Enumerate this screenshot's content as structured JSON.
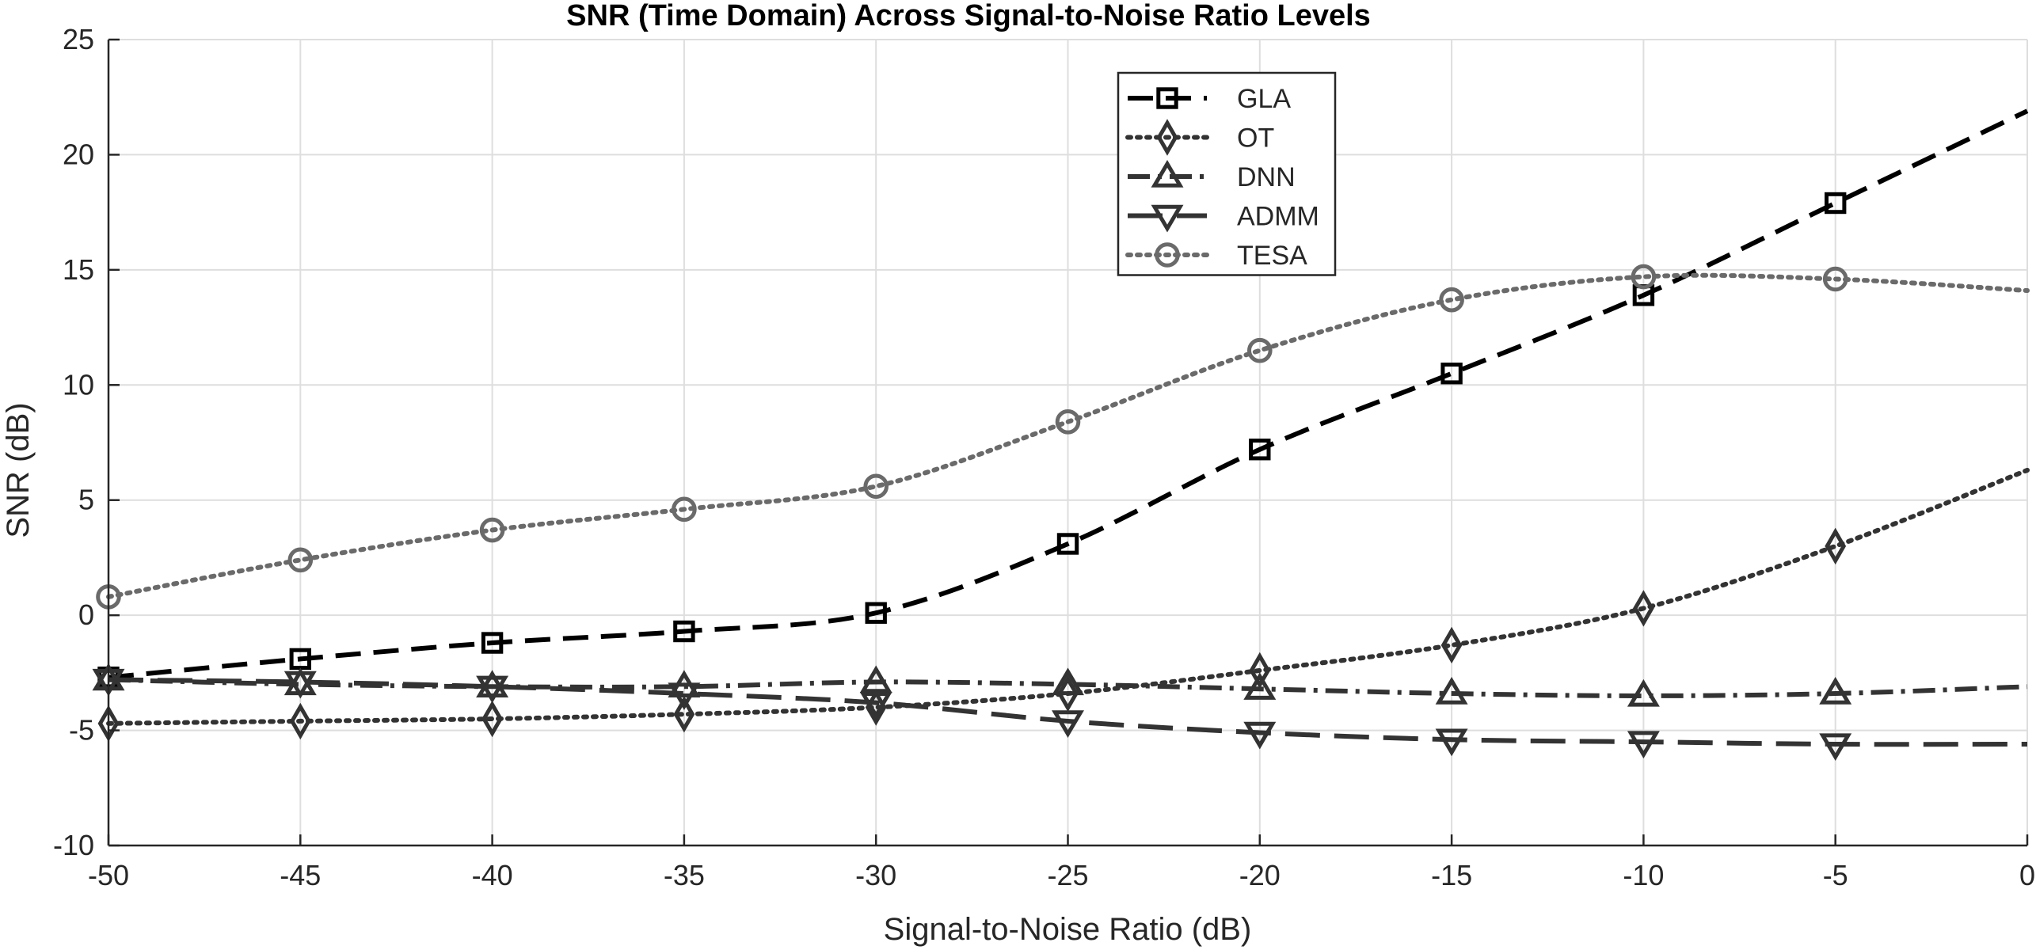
{
  "chart_data": {
    "type": "line",
    "title": "SNR (Time Domain) Across Signal-to-Noise Ratio Levels",
    "xlabel": "Signal-to-Noise Ratio (dB)",
    "ylabel": "SNR (dB)",
    "xlim": [
      -50,
      0
    ],
    "ylim": [
      -10,
      25
    ],
    "xticks": [
      -50,
      -45,
      -40,
      -35,
      -30,
      -25,
      -20,
      -15,
      -10,
      -5,
      0
    ],
    "yticks": [
      -10,
      -5,
      0,
      5,
      10,
      15,
      20,
      25
    ],
    "grid": true,
    "legend_position": "top-center",
    "series": [
      {
        "name": "GLA",
        "color": "#000000",
        "dash": "dashed",
        "marker": "square",
        "x": [
          -50,
          -45,
          -40,
          -35,
          -30,
          -25,
          -20,
          -15,
          -10,
          -5
        ],
        "y": [
          -2.7,
          -1.9,
          -1.2,
          -0.7,
          0.1,
          3.1,
          7.2,
          10.5,
          13.9,
          17.9
        ],
        "curve_x": [
          -50,
          -45,
          -40,
          -35,
          -30,
          -25,
          -20,
          -15,
          -10,
          -5,
          0
        ],
        "curve_y": [
          -2.7,
          -1.9,
          -1.2,
          -0.7,
          0.1,
          3.1,
          7.2,
          10.5,
          13.9,
          17.9,
          21.9
        ]
      },
      {
        "name": "OT",
        "color": "#333333",
        "dash": "dotted",
        "marker": "diamond",
        "x": [
          -50,
          -45,
          -40,
          -35,
          -30,
          -25,
          -20,
          -15,
          -10,
          -5
        ],
        "y": [
          -4.7,
          -4.6,
          -4.5,
          -4.3,
          -4.0,
          -3.4,
          -2.4,
          -1.3,
          0.3,
          3.0
        ],
        "curve_x": [
          -50,
          -45,
          -40,
          -35,
          -30,
          -25,
          -20,
          -15,
          -10,
          -5,
          0
        ],
        "curve_y": [
          -4.7,
          -4.6,
          -4.5,
          -4.3,
          -4.0,
          -3.4,
          -2.4,
          -1.3,
          0.3,
          3.0,
          6.3
        ]
      },
      {
        "name": "DNN",
        "color": "#333333",
        "dash": "dashdot",
        "marker": "triangle-up",
        "x": [
          -50,
          -45,
          -40,
          -35,
          -30,
          -25,
          -20,
          -15,
          -10,
          -5
        ],
        "y": [
          -2.8,
          -3.0,
          -3.1,
          -3.1,
          -2.9,
          -3.0,
          -3.2,
          -3.4,
          -3.5,
          -3.4
        ],
        "curve_x": [
          -50,
          -45,
          -40,
          -35,
          -30,
          -25,
          -20,
          -15,
          -10,
          -5,
          0
        ],
        "curve_y": [
          -2.8,
          -3.0,
          -3.1,
          -3.1,
          -2.9,
          -3.0,
          -3.2,
          -3.4,
          -3.5,
          -3.4,
          -3.1
        ]
      },
      {
        "name": "ADMM",
        "color": "#333333",
        "dash": "longdash",
        "marker": "triangle-down",
        "x": [
          -50,
          -45,
          -40,
          -35,
          -30,
          -25,
          -20,
          -15,
          -10,
          -5
        ],
        "y": [
          -2.8,
          -2.9,
          -3.1,
          -3.4,
          -3.8,
          -4.6,
          -5.1,
          -5.4,
          -5.5,
          -5.6
        ],
        "curve_x": [
          -50,
          -45,
          -40,
          -35,
          -30,
          -25,
          -20,
          -15,
          -10,
          -5,
          0
        ],
        "curve_y": [
          -2.8,
          -2.9,
          -3.1,
          -3.4,
          -3.8,
          -4.6,
          -5.1,
          -5.4,
          -5.5,
          -5.6,
          -5.6
        ]
      },
      {
        "name": "TESA",
        "color": "#6a6a6a",
        "dash": "dotted",
        "marker": "circle",
        "x": [
          -50,
          -45,
          -40,
          -35,
          -30,
          -25,
          -20,
          -15,
          -10,
          -5
        ],
        "y": [
          0.8,
          2.4,
          3.7,
          4.6,
          5.6,
          8.4,
          11.5,
          13.7,
          14.7,
          14.6
        ],
        "curve_x": [
          -50,
          -45,
          -40,
          -35,
          -30,
          -25,
          -20,
          -15,
          -10,
          -5,
          0
        ],
        "curve_y": [
          0.8,
          2.4,
          3.7,
          4.6,
          5.6,
          8.4,
          11.5,
          13.7,
          14.7,
          14.6,
          14.1
        ]
      }
    ]
  }
}
